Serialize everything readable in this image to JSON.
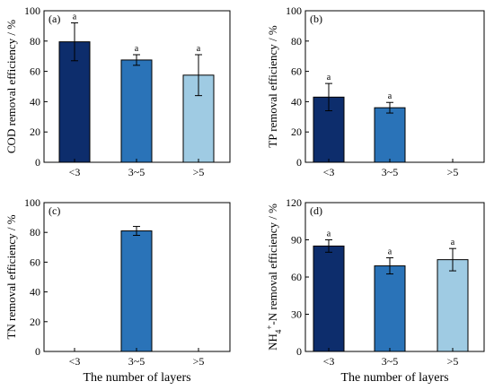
{
  "figure": {
    "xlabel": "The number of layers"
  },
  "colors": {
    "lt3": "#0d2d6c",
    "3to5": "#2a73b8",
    "gt5": "#9fcbe3"
  },
  "chart_data": [
    {
      "type": "bar",
      "panel": "(a)",
      "ylabel": "COD removal efficiency / %",
      "xlabel": "",
      "categories": [
        "<3",
        "3~5",
        ">5"
      ],
      "values": [
        79.5,
        67.5,
        57.5
      ],
      "errors": [
        12.5,
        3.5,
        13.5
      ],
      "sig_labels": [
        "a",
        "a",
        "a"
      ],
      "ylim": [
        0,
        100
      ],
      "yticks": [
        0,
        20,
        40,
        60,
        80,
        100
      ]
    },
    {
      "type": "bar",
      "panel": "(b)",
      "ylabel": "TP removal efficiency / %",
      "xlabel": "",
      "categories": [
        "<3",
        "3~5",
        ">5"
      ],
      "values": [
        43,
        36,
        null
      ],
      "errors": [
        9,
        3.5,
        null
      ],
      "sig_labels": [
        "a",
        "a",
        null
      ],
      "ylim": [
        0,
        100
      ],
      "yticks": [
        0,
        20,
        40,
        60,
        80,
        100
      ]
    },
    {
      "type": "bar",
      "panel": "(c)",
      "ylabel": "TN removal efficiency / %",
      "xlabel": "The number of layers",
      "categories": [
        "<3",
        "3~5",
        ">5"
      ],
      "values": [
        null,
        81,
        null
      ],
      "errors": [
        null,
        3,
        null
      ],
      "sig_labels": [
        null,
        null,
        null
      ],
      "ylim": [
        0,
        100
      ],
      "yticks": [
        0,
        20,
        40,
        60,
        80,
        100
      ]
    },
    {
      "type": "bar",
      "panel": "(d)",
      "ylabel_main": "NH",
      "ylabel_sub": "4",
      "ylabel_sup": "+",
      "ylabel_rest": "-N removal efficiency / %",
      "xlabel": "The number of layers",
      "categories": [
        "<3",
        "3~5",
        ">5"
      ],
      "values": [
        85,
        69,
        74
      ],
      "errors": [
        5,
        6.5,
        9
      ],
      "sig_labels": [
        "a",
        "a",
        "a"
      ],
      "ylim": [
        0,
        120
      ],
      "yticks": [
        0,
        30,
        60,
        90,
        120
      ]
    }
  ]
}
